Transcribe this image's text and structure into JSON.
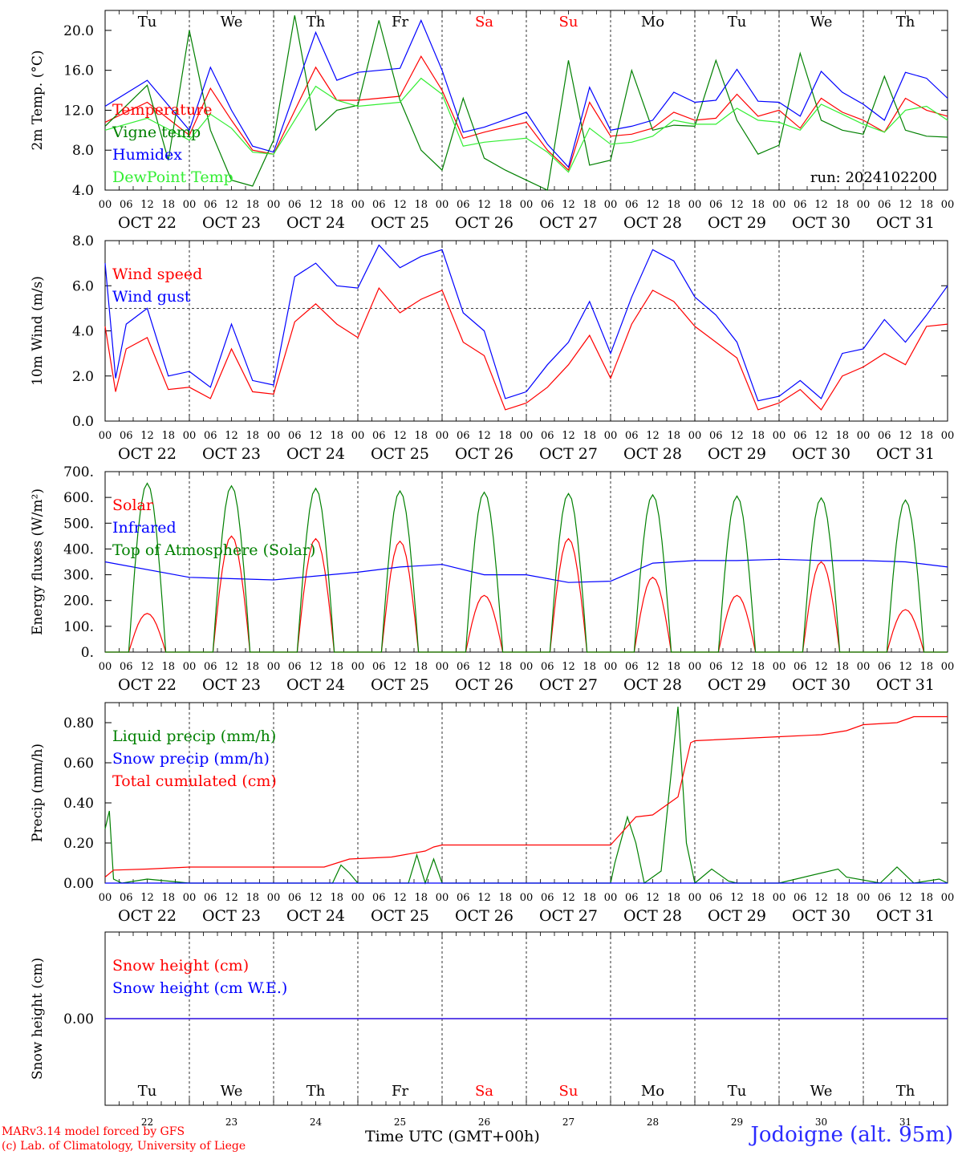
{
  "run_label": "run: 2024102200",
  "footer": {
    "model": "MARv3.14 model forced by GFS",
    "lab": "(c) Lab. of Climatology, University of Liege",
    "xlabel": "Time UTC (GMT+00h)",
    "station": "Jodoigne (alt. 95m)"
  },
  "colors": {
    "red": "#ff0000",
    "blue": "#0000ff",
    "green": "#008000",
    "lightgreen": "#33ee33",
    "purple": "#800080"
  },
  "days": {
    "weekday": [
      "Tu",
      "We",
      "Th",
      "Fr",
      "Sa",
      "Su",
      "Mo",
      "Tu",
      "We",
      "Th"
    ],
    "weekend_flags": [
      false,
      false,
      false,
      false,
      true,
      true,
      false,
      false,
      false,
      false
    ],
    "date": [
      "OCT 22",
      "OCT 23",
      "OCT 24",
      "OCT 25",
      "OCT 26",
      "OCT 27",
      "OCT 28",
      "OCT 29",
      "OCT 30",
      "OCT 31"
    ],
    "day_number": [
      "22",
      "23",
      "24",
      "25",
      "26",
      "27",
      "28",
      "29",
      "30",
      "31"
    ]
  },
  "hour_ticks": [
    "00",
    "06",
    "12",
    "18"
  ],
  "chart_data": [
    {
      "type": "line",
      "ylabel": "2m Temp. (°C)",
      "ylim": [
        4.0,
        22.0
      ],
      "ytick_labels": [
        "4.0",
        "8.0",
        "12.0",
        "16.0",
        "20.0"
      ],
      "x_days": [
        22,
        32
      ],
      "series": [
        {
          "name": "Temperature",
          "color": "#ff0000",
          "x": [
            0,
            0.5,
            1,
            1.25,
            1.5,
            1.75,
            2,
            2.5,
            2.75,
            3,
            3.5,
            3.75,
            4,
            4.25,
            4.5,
            5,
            5.25,
            5.5,
            5.75,
            6,
            6.25,
            6.5,
            6.75,
            7,
            7.25,
            7.5,
            7.75,
            8,
            8.25,
            8.5,
            8.75,
            9,
            9.25,
            9.5,
            9.75,
            10
          ],
          "values": [
            10.8,
            12.8,
            9.5,
            14.2,
            11.0,
            8.0,
            7.6,
            16.3,
            13.0,
            13.0,
            13.4,
            17.4,
            14.0,
            9.2,
            9.8,
            10.8,
            8.0,
            6.0,
            12.8,
            9.4,
            9.6,
            10.2,
            11.8,
            11.0,
            11.2,
            13.6,
            11.4,
            12.0,
            10.2,
            13.2,
            11.8,
            11.0,
            9.8,
            13.2,
            12.0,
            11.4
          ]
        },
        {
          "name": "Vigne temp",
          "color": "#008000",
          "x": [
            0,
            0.5,
            0.75,
            1,
            1.25,
            1.5,
            1.75,
            2,
            2.25,
            2.5,
            2.75,
            3,
            3.25,
            3.5,
            3.75,
            4,
            4.25,
            4.5,
            4.75,
            5,
            5.25,
            5.5,
            5.75,
            6,
            6.25,
            6.5,
            6.75,
            7,
            7.25,
            7.5,
            7.75,
            8,
            8.25,
            8.5,
            8.75,
            9,
            9.25,
            9.5,
            9.75,
            10
          ],
          "values": [
            10.4,
            14.5,
            7.0,
            20.0,
            10.0,
            5.0,
            4.4,
            9.0,
            21.5,
            10.0,
            12.0,
            12.5,
            21.0,
            13.0,
            8.0,
            6.0,
            13.2,
            7.2,
            6.0,
            5.0,
            4.0,
            17.0,
            6.5,
            7.0,
            16.0,
            10.0,
            10.5,
            10.4,
            17.0,
            11.0,
            7.6,
            8.5,
            17.7,
            11.0,
            10.0,
            9.6,
            15.4,
            10.0,
            9.4,
            9.3
          ]
        },
        {
          "name": "Humidex",
          "color": "#0000ff",
          "x": [
            0,
            0.5,
            1,
            1.25,
            1.5,
            1.75,
            2,
            2.5,
            2.75,
            3,
            3.5,
            3.75,
            4,
            4.25,
            4.5,
            5,
            5.25,
            5.5,
            5.75,
            6,
            6.25,
            6.5,
            6.75,
            7,
            7.25,
            7.5,
            7.75,
            8,
            8.25,
            8.5,
            8.75,
            9,
            9.25,
            9.5,
            9.75,
            10
          ],
          "values": [
            12.4,
            15.0,
            10.0,
            16.3,
            12.0,
            8.4,
            7.8,
            19.8,
            15.0,
            15.8,
            16.2,
            21.0,
            16.0,
            9.8,
            10.3,
            11.8,
            8.6,
            6.3,
            14.3,
            10.0,
            10.4,
            11.0,
            13.8,
            12.8,
            13.0,
            16.1,
            12.9,
            12.8,
            11.4,
            15.9,
            13.8,
            12.6,
            11.0,
            15.8,
            15.2,
            13.2
          ]
        },
        {
          "name": "DewPoint Temp",
          "color": "#33ee33",
          "x": [
            0,
            0.5,
            1,
            1.25,
            1.5,
            1.75,
            2,
            2.5,
            2.75,
            3,
            3.5,
            3.75,
            4,
            4.25,
            4.5,
            5,
            5.25,
            5.5,
            5.75,
            6,
            6.25,
            6.5,
            6.75,
            7,
            7.25,
            7.5,
            7.75,
            8,
            8.25,
            8.5,
            8.75,
            9,
            9.25,
            9.5,
            9.75,
            10
          ],
          "values": [
            10.0,
            11.2,
            9.0,
            11.6,
            10.2,
            7.8,
            7.6,
            14.4,
            13.0,
            12.4,
            12.8,
            15.2,
            13.6,
            8.4,
            8.8,
            9.2,
            7.8,
            5.8,
            10.2,
            8.6,
            8.8,
            9.4,
            11.0,
            10.6,
            10.6,
            12.2,
            11.0,
            10.8,
            10.0,
            12.6,
            11.6,
            10.6,
            9.8,
            12.0,
            12.4,
            11.0
          ]
        }
      ]
    },
    {
      "type": "line",
      "ylabel": "10m Wind (m/s)",
      "ylim": [
        0.0,
        8.0
      ],
      "ytick_labels": [
        "0.0",
        "2.0",
        "4.0",
        "6.0",
        "8.0"
      ],
      "reference_line": 5.0,
      "series": [
        {
          "name": "Wind speed",
          "color": "#ff0000",
          "x": [
            0,
            0.125,
            0.25,
            0.5,
            0.75,
            1,
            1.25,
            1.5,
            1.75,
            2,
            2.25,
            2.5,
            2.75,
            3,
            3.25,
            3.5,
            3.75,
            4,
            4.25,
            4.5,
            4.75,
            5,
            5.25,
            5.5,
            5.75,
            6,
            6.25,
            6.5,
            6.75,
            7,
            7.25,
            7.5,
            7.75,
            8,
            8.25,
            8.5,
            8.75,
            9,
            9.25,
            9.5,
            9.75,
            10
          ],
          "values": [
            4.2,
            1.3,
            3.2,
            3.7,
            1.4,
            1.5,
            1.0,
            3.2,
            1.3,
            1.2,
            4.4,
            5.2,
            4.3,
            3.7,
            5.9,
            4.8,
            5.4,
            5.8,
            3.5,
            2.9,
            0.5,
            0.8,
            1.5,
            2.5,
            3.8,
            1.9,
            4.3,
            5.8,
            5.3,
            4.2,
            3.5,
            2.8,
            0.5,
            0.8,
            1.4,
            0.5,
            2.0,
            2.4,
            3.0,
            2.5,
            4.2,
            4.3
          ]
        },
        {
          "name": "Wind gust",
          "color": "#0000ff",
          "x": [
            0,
            0.125,
            0.25,
            0.5,
            0.75,
            1,
            1.25,
            1.5,
            1.75,
            2,
            2.25,
            2.5,
            2.75,
            3,
            3.25,
            3.5,
            3.75,
            4,
            4.25,
            4.5,
            4.75,
            5,
            5.25,
            5.5,
            5.75,
            6,
            6.25,
            6.5,
            6.75,
            7,
            7.25,
            7.5,
            7.75,
            8,
            8.25,
            8.5,
            8.75,
            9,
            9.25,
            9.5,
            9.75,
            10
          ],
          "values": [
            7.0,
            1.9,
            4.3,
            5.0,
            2.0,
            2.2,
            1.5,
            4.3,
            1.8,
            1.6,
            6.4,
            7.0,
            6.0,
            5.9,
            7.8,
            6.8,
            7.3,
            7.6,
            4.8,
            4.0,
            1.0,
            1.3,
            2.5,
            3.5,
            5.3,
            3.0,
            5.5,
            7.6,
            7.1,
            5.5,
            4.7,
            3.5,
            0.9,
            1.1,
            1.8,
            1.0,
            3.0,
            3.2,
            4.5,
            3.5,
            4.7,
            6.0
          ]
        }
      ]
    },
    {
      "type": "line",
      "ylabel": "Energy fluxes (W/m²)",
      "ylim": [
        0,
        700
      ],
      "ytick_labels": [
        "0.",
        "100.",
        "200.",
        "300.",
        "400.",
        "500.",
        "600.",
        "700."
      ],
      "series": [
        {
          "name": "Solar",
          "color": "#ff0000",
          "peaks": [
            150,
            450,
            440,
            430,
            220,
            440,
            290,
            220,
            350,
            165
          ]
        },
        {
          "name": "Infrared",
          "color": "#0000ff",
          "x": [
            0,
            1,
            2,
            3,
            3.5,
            4,
            4.5,
            5,
            5.5,
            6,
            6.5,
            7,
            7.5,
            8,
            8.5,
            9,
            9.5,
            10
          ],
          "values": [
            350,
            290,
            280,
            310,
            330,
            340,
            300,
            300,
            270,
            275,
            345,
            355,
            355,
            360,
            355,
            355,
            350,
            330
          ]
        },
        {
          "name": "Top of Atmosphere (Solar)",
          "color": "#008000",
          "peaks": [
            655,
            645,
            635,
            625,
            620,
            615,
            610,
            605,
            598,
            590
          ]
        }
      ]
    },
    {
      "type": "line",
      "ylabel": "Precip (mm/h)",
      "ylim": [
        0.0,
        0.9
      ],
      "ytick_labels": [
        "0.00",
        "0.20",
        "0.40",
        "0.60",
        "0.80"
      ],
      "series": [
        {
          "name": "Liquid precip (mm/h)",
          "color": "#008000",
          "x": [
            0,
            0.05,
            0.1,
            0.2,
            0.5,
            1,
            2,
            2.7,
            2.8,
            2.9,
            3.0,
            3.6,
            3.7,
            3.8,
            3.9,
            4.0,
            4.5,
            6,
            6.05,
            6.2,
            6.3,
            6.4,
            6.6,
            6.8,
            6.9,
            7.0,
            7.2,
            7.4,
            7.5,
            8,
            8.7,
            8.8,
            9.2,
            9.4,
            9.6,
            9.9,
            10
          ],
          "values": [
            0.27,
            0.36,
            0.02,
            0.0,
            0.02,
            0.0,
            0.0,
            0.0,
            0.09,
            0.05,
            0.0,
            0.0,
            0.14,
            0.0,
            0.12,
            0.0,
            0.0,
            0.0,
            0.1,
            0.33,
            0.2,
            0.0,
            0.06,
            0.88,
            0.2,
            0.0,
            0.07,
            0.01,
            0.0,
            0.0,
            0.07,
            0.03,
            0.0,
            0.08,
            0.0,
            0.02,
            0.0
          ]
        },
        {
          "name": "Snow precip (mm/h)",
          "color": "#0000ff",
          "x": [
            0,
            10
          ],
          "values": [
            0.0,
            0.0
          ]
        },
        {
          "name": "Total cumulated (cm)",
          "color": "#ff0000",
          "x": [
            0,
            0.1,
            0.5,
            1,
            2,
            2.6,
            2.9,
            3.4,
            3.8,
            3.9,
            4,
            5,
            6,
            6.15,
            6.3,
            6.5,
            6.8,
            6.95,
            7,
            7.5,
            8,
            8.5,
            8.8,
            9,
            9.4,
            9.6,
            10
          ],
          "values": [
            0.03,
            0.065,
            0.07,
            0.08,
            0.08,
            0.08,
            0.12,
            0.13,
            0.16,
            0.18,
            0.19,
            0.19,
            0.19,
            0.26,
            0.33,
            0.34,
            0.43,
            0.7,
            0.71,
            0.72,
            0.73,
            0.74,
            0.76,
            0.79,
            0.8,
            0.83,
            0.83
          ]
        }
      ]
    },
    {
      "type": "line",
      "ylabel": "Snow height (cm)",
      "ylim": [
        -1.0,
        1.0
      ],
      "ytick_labels": [
        "0.00"
      ],
      "series": [
        {
          "name": "Snow height (cm)",
          "color": "#ff0000",
          "x": [
            0,
            10
          ],
          "values": [
            0,
            0
          ]
        },
        {
          "name": "Snow height (cm W.E.)",
          "color": "#0000ff",
          "x": [
            0,
            10
          ],
          "values": [
            0,
            0
          ]
        }
      ]
    }
  ]
}
